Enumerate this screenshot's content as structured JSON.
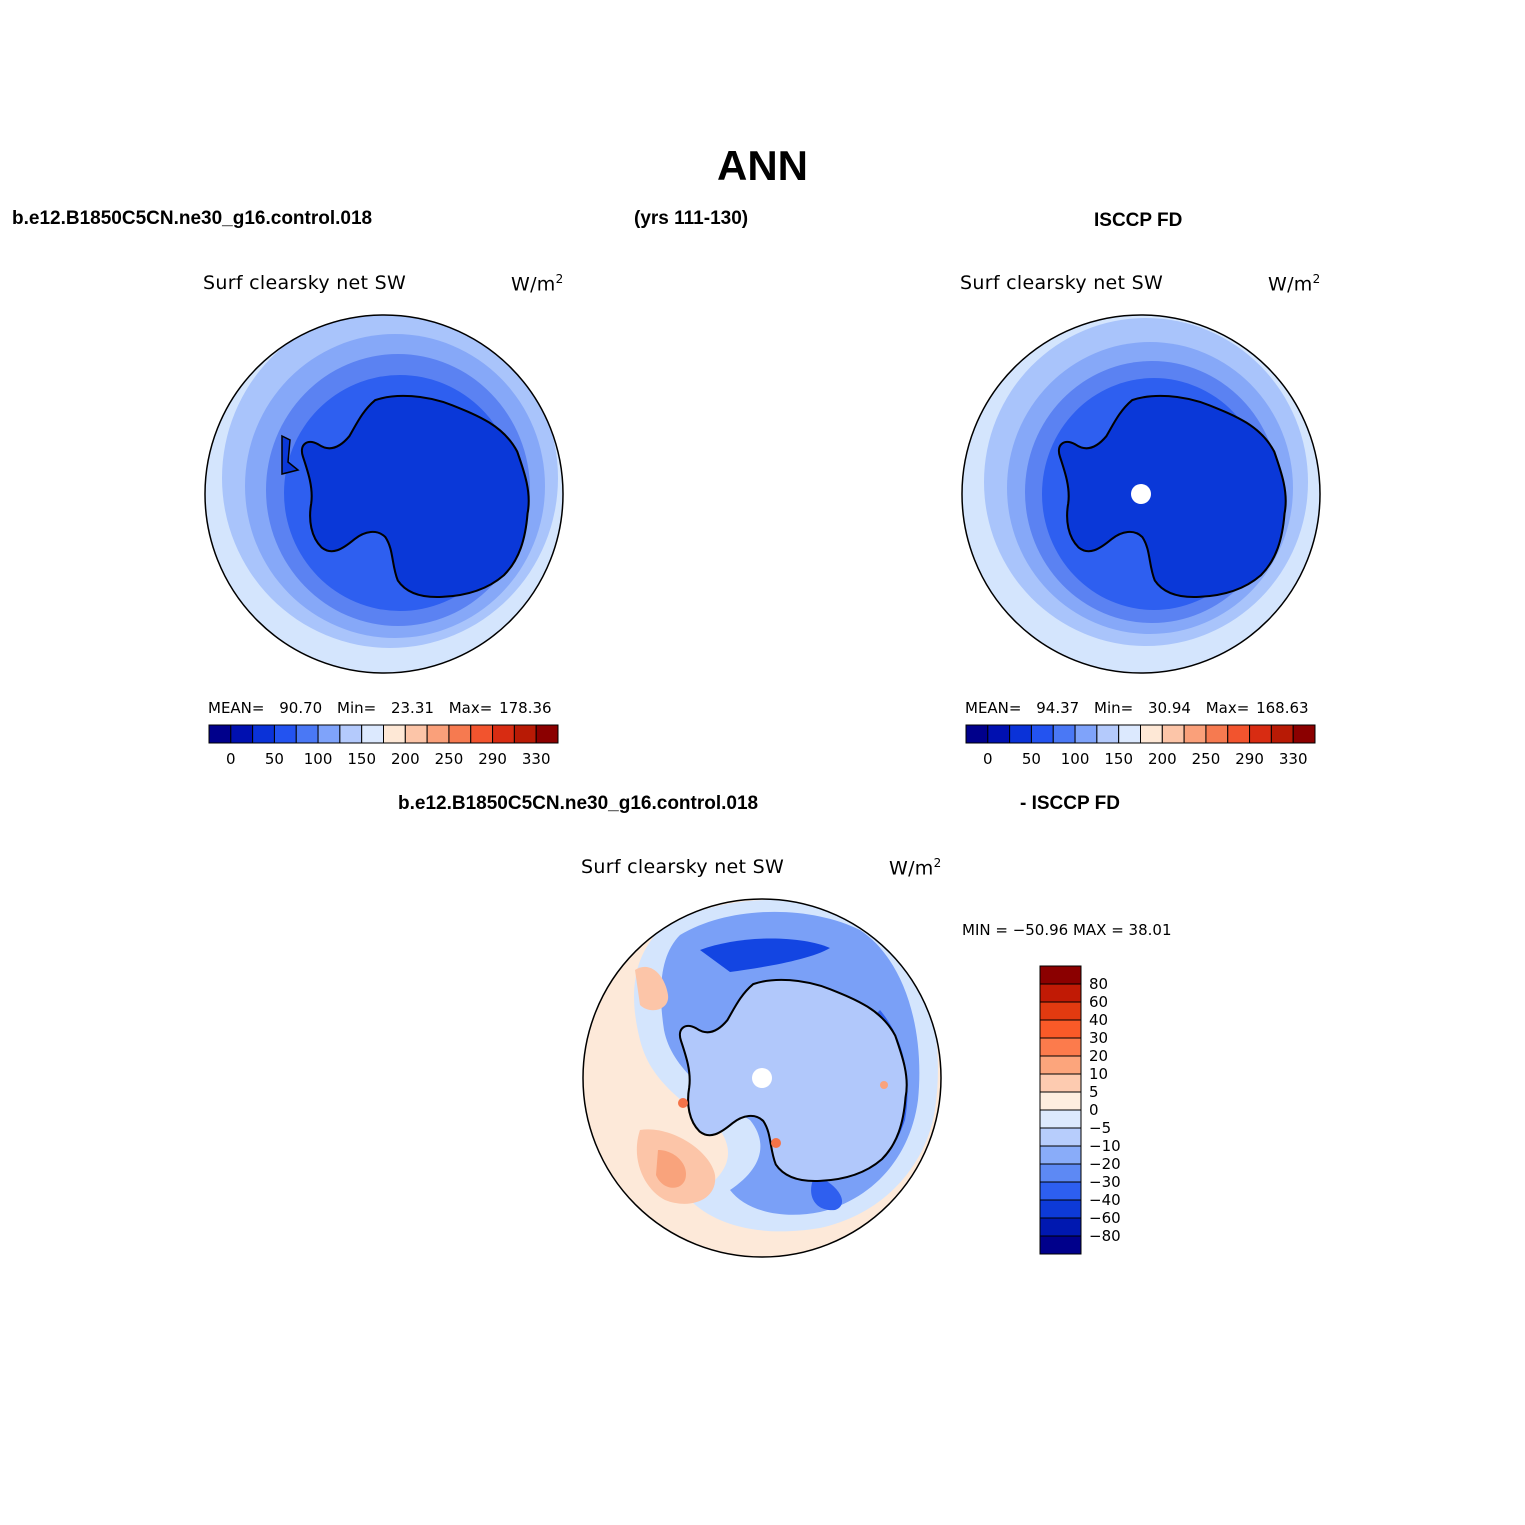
{
  "figure": {
    "title": "ANN",
    "case_name": "b.e12.B1850C5CN.ne30_g16.control.018",
    "years": "(yrs 111-130)",
    "obs_name": "ISCCP FD",
    "diff_left": "b.e12.B1850C5CN.ne30_g16.control.018",
    "diff_right": "- ISCCP FD"
  },
  "panels": {
    "model": {
      "variable": "Surf clearsky net SW",
      "units_text": "W/m",
      "units_sup": "2",
      "mean_label": "MEAN=",
      "mean": "90.70",
      "min_label": "Min=",
      "min": "23.31",
      "max_label": "Max=",
      "max": "178.36"
    },
    "obs": {
      "variable": "Surf clearsky net SW",
      "units_text": "W/m",
      "units_sup": "2",
      "mean_label": "MEAN=",
      "mean": "94.37",
      "min_label": "Min=",
      "min": "30.94",
      "max_label": "Max=",
      "max": "168.63"
    },
    "diff": {
      "variable": "Surf clearsky net SW",
      "units_text": "W/m",
      "units_sup": "2",
      "minmax": "MIN = −50.96 MAX =   38.01"
    }
  },
  "colorbar_abs": {
    "colors": [
      "#00008b",
      "#0010b0",
      "#0a32d8",
      "#2353f0",
      "#4a78f5",
      "#7fa3fa",
      "#b4cafc",
      "#dce9fe",
      "#fee8d6",
      "#fcc5a8",
      "#faa07a",
      "#f67a50",
      "#f2542e",
      "#d82c12",
      "#b81a05",
      "#8b0000"
    ],
    "labels": [
      "0",
      "50",
      "100",
      "150",
      "200",
      "250",
      "290",
      "330"
    ]
  },
  "colorbar_diff": {
    "colors": [
      "#8b0000",
      "#c11a05",
      "#e23a10",
      "#fa5a28",
      "#fc7b4c",
      "#fca57c",
      "#fdcbb0",
      "#feeedf",
      "#dde9fd",
      "#b7cdfc",
      "#89acf9",
      "#5d89f4",
      "#2d5ff0",
      "#0d3ad8",
      "#0018b0",
      "#00008b"
    ],
    "labels": [
      "80",
      "60",
      "40",
      "30",
      "20",
      "10",
      "5",
      "0",
      "−5",
      "−10",
      "−20",
      "−30",
      "−40",
      "−60",
      "−80"
    ]
  },
  "map_colors": {
    "ocean_outer": "#d4e5fd",
    "band2": "#a9c4fb",
    "band3": "#86a8f8",
    "band4": "#5b82f2",
    "band5": "#2e5ff0",
    "interior": "#0a38d8",
    "diff_bg": "#fde9d9",
    "diff_interior": "#b1c8fb",
    "diff_light": "#d4e5fd",
    "diff_mid": "#7aa0f7",
    "diff_dark": "#2f5fef",
    "diff_darker": "#1345e2",
    "diff_pos1": "#fcc5a8",
    "diff_pos2": "#f9a37c",
    "diff_pos3": "#f47348",
    "missing": "#ffffff",
    "coast": "#000000"
  }
}
